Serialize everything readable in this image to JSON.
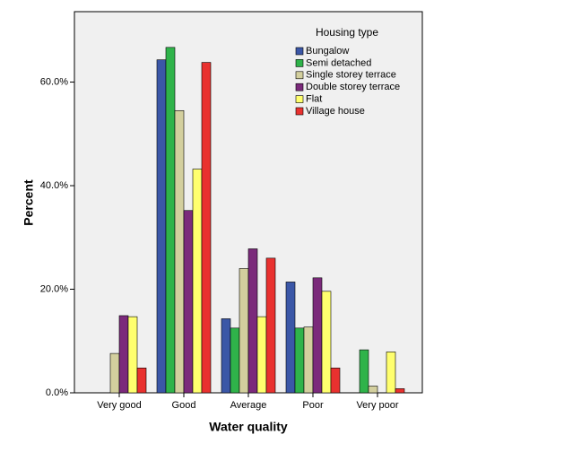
{
  "chart_data": {
    "type": "bar",
    "x_label": "Water quality",
    "y_label": "Percent",
    "legend_title": "Housing type",
    "legend_position": "upper right",
    "categories": [
      "Very good",
      "Good",
      "Average",
      "Poor",
      "Very poor"
    ],
    "series": [
      {
        "name": "Bungalow",
        "color": "#3b57a7",
        "values": [
          0,
          64.3,
          14.3,
          21.4,
          0
        ]
      },
      {
        "name": "Semi detached",
        "color": "#2fb34a",
        "values": [
          0,
          66.7,
          12.5,
          12.5,
          8.3
        ]
      },
      {
        "name": "Single storey terrace",
        "color": "#d3cf9e",
        "values": [
          7.6,
          54.5,
          24.0,
          12.7,
          1.3
        ]
      },
      {
        "name": "Double storey terrace",
        "color": "#7b2a7b",
        "values": [
          14.9,
          35.2,
          27.8,
          22.2,
          0
        ]
      },
      {
        "name": "Flat",
        "color": "#ffff6e",
        "values": [
          14.7,
          43.2,
          14.7,
          19.6,
          7.9
        ]
      },
      {
        "name": "Village house",
        "color": "#e9312f",
        "values": [
          4.8,
          63.8,
          26.0,
          4.8,
          0.8
        ]
      }
    ],
    "ylim": [
      0,
      73.6
    ],
    "yticks": [
      {
        "value": 0,
        "label": "0.0%"
      },
      {
        "value": 20,
        "label": "20.0%"
      },
      {
        "value": 40,
        "label": "40.0%"
      },
      {
        "value": 60,
        "label": "60.0%"
      }
    ]
  }
}
